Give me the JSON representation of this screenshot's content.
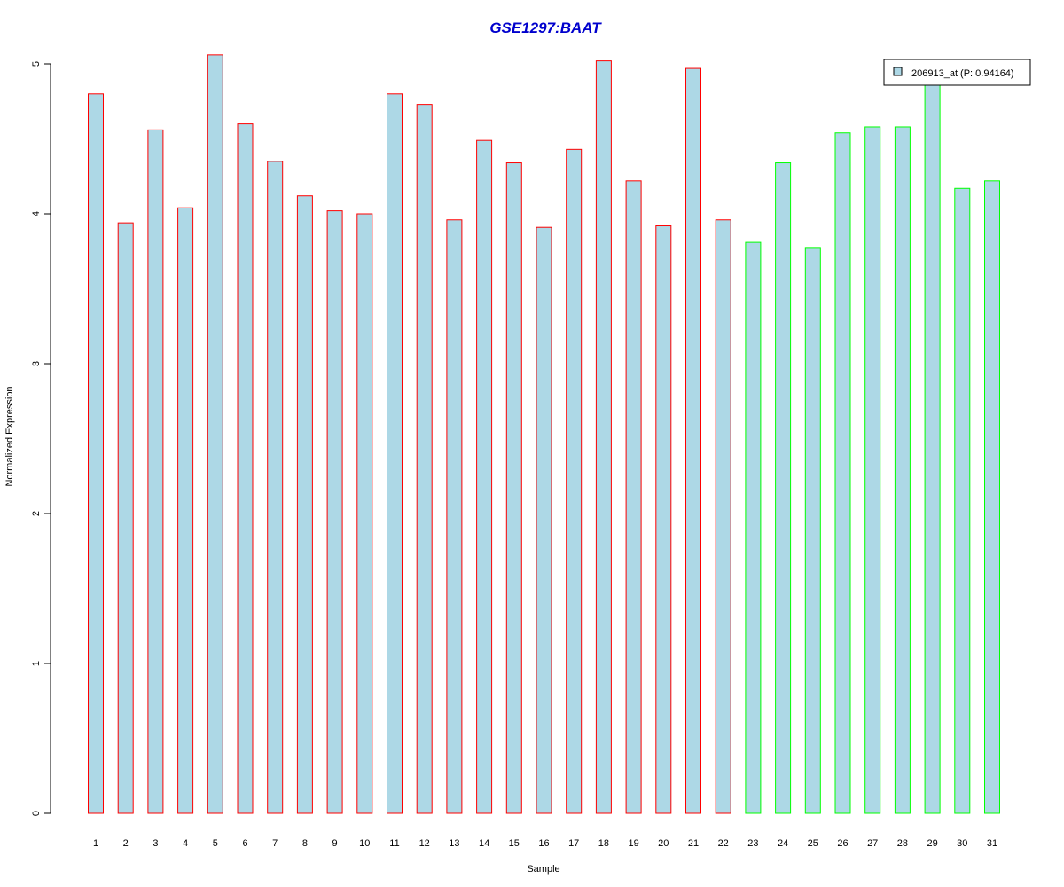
{
  "chart_data": {
    "type": "bar",
    "title": "GSE1297:BAAT",
    "xlabel": "Sample",
    "ylabel": "Normalized Expression",
    "ylim": [
      0,
      5
    ],
    "yticks": [
      "0",
      "1",
      "2",
      "3",
      "4",
      "5"
    ],
    "categories": [
      "1",
      "2",
      "3",
      "4",
      "5",
      "6",
      "7",
      "8",
      "9",
      "10",
      "11",
      "12",
      "13",
      "14",
      "15",
      "16",
      "17",
      "18",
      "19",
      "20",
      "21",
      "22",
      "23",
      "24",
      "25",
      "26",
      "27",
      "28",
      "29",
      "30",
      "31"
    ],
    "values": [
      4.8,
      3.94,
      4.56,
      4.04,
      5.06,
      4.6,
      4.35,
      4.12,
      4.02,
      4.0,
      4.8,
      4.73,
      3.96,
      4.49,
      4.34,
      3.91,
      4.43,
      5.02,
      4.22,
      3.92,
      4.97,
      3.96,
      3.81,
      4.34,
      3.77,
      4.54,
      4.58,
      4.58,
      4.87,
      4.17,
      4.22
    ],
    "groups": [
      {
        "samples": "1-22",
        "border_color": "#ff0000"
      },
      {
        "samples": "23-31",
        "border_color": "#00ff00"
      }
    ],
    "bar_fill": "#add8e6",
    "grid": false,
    "legend": {
      "position": "top-right",
      "entries": [
        {
          "label": "206913_at (P: 0.94164)",
          "color": "#add8e6"
        }
      ]
    }
  },
  "colors": {
    "title": "#0000cd",
    "group1_border": "#ff0000",
    "group2_border": "#00ff00",
    "bar_fill": "#add8e6"
  }
}
